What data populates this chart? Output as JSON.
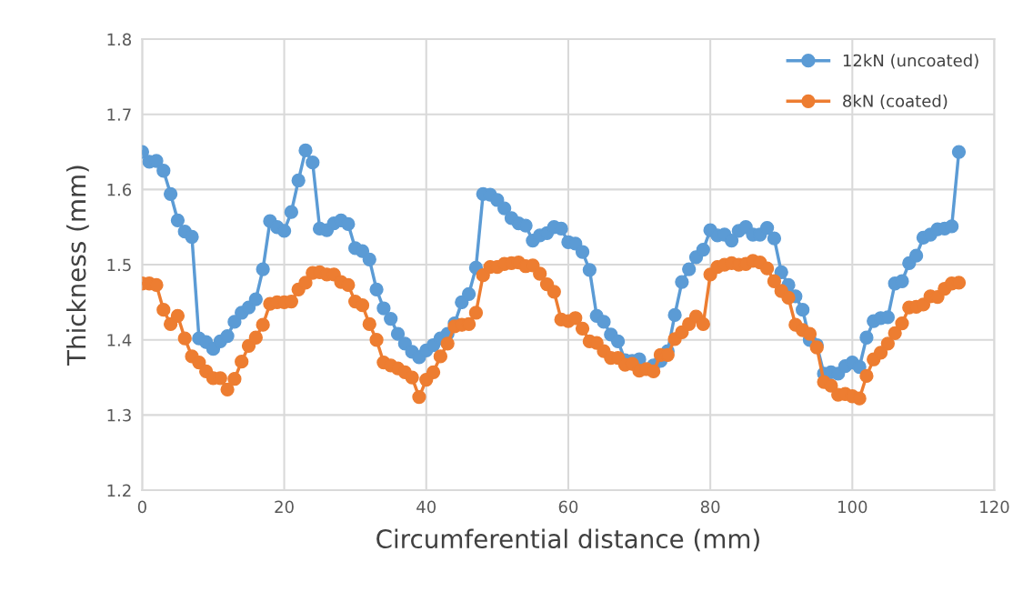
{
  "chart_data": {
    "type": "line",
    "xlabel": "Circumferential distance (mm)",
    "ylabel": "Thickness (mm)",
    "x": [
      0,
      1,
      2,
      3,
      4,
      5,
      6,
      7,
      8,
      9,
      10,
      11,
      12,
      13,
      14,
      15,
      16,
      17,
      18,
      19,
      20,
      21,
      22,
      23,
      24,
      25,
      26,
      27,
      28,
      29,
      30,
      31,
      32,
      33,
      34,
      35,
      36,
      37,
      38,
      39,
      40,
      41,
      42,
      43,
      44,
      45,
      46,
      47,
      48,
      49,
      50,
      51,
      52,
      53,
      54,
      55,
      56,
      57,
      58,
      59,
      60,
      61,
      62,
      63,
      64,
      65,
      66,
      67,
      68,
      69,
      70,
      71,
      72,
      73,
      74,
      75,
      76,
      77,
      78,
      79,
      80,
      81,
      82,
      83,
      84,
      85,
      86,
      87,
      88,
      89,
      90,
      91,
      92,
      93,
      94,
      95,
      96,
      97,
      98,
      99,
      100,
      101,
      102,
      103,
      104,
      105,
      106,
      107,
      108,
      109,
      110,
      111,
      112,
      113,
      114,
      115
    ],
    "series": [
      {
        "name": "12kN (uncoated)",
        "color": "#5b9bd5",
        "values": [
          1.65,
          1.637,
          1.638,
          1.625,
          1.594,
          1.559,
          1.544,
          1.537,
          1.402,
          1.397,
          1.388,
          1.398,
          1.405,
          1.424,
          1.436,
          1.443,
          1.454,
          1.494,
          1.558,
          1.55,
          1.545,
          1.57,
          1.612,
          1.652,
          1.636,
          1.548,
          1.546,
          1.555,
          1.559,
          1.554,
          1.522,
          1.518,
          1.507,
          1.467,
          1.442,
          1.428,
          1.408,
          1.395,
          1.384,
          1.377,
          1.386,
          1.393,
          1.402,
          1.408,
          1.422,
          1.45,
          1.461,
          1.496,
          1.594,
          1.593,
          1.586,
          1.575,
          1.562,
          1.555,
          1.552,
          1.532,
          1.539,
          1.542,
          1.55,
          1.548,
          1.53,
          1.528,
          1.517,
          1.493,
          1.432,
          1.424,
          1.407,
          1.398,
          1.373,
          1.372,
          1.374,
          null,
          1.366,
          1.372,
          1.385,
          1.433,
          1.477,
          1.494,
          1.51,
          1.52,
          1.546,
          1.539,
          1.54,
          1.532,
          1.545,
          1.55,
          1.54,
          1.54,
          1.549,
          1.535,
          1.49,
          1.473,
          1.458,
          1.44,
          1.4,
          1.393,
          1.355,
          1.357,
          1.355,
          1.365,
          1.37,
          1.364,
          1.403,
          1.425,
          1.429,
          1.43,
          1.475,
          1.478,
          1.502,
          1.512,
          1.536,
          1.54,
          1.547,
          1.548,
          1.551,
          1.65
        ]
      },
      {
        "name": "8kN (coated)",
        "color": "#ed7d31",
        "values": [
          1.475,
          1.475,
          1.473,
          1.44,
          1.421,
          1.432,
          1.402,
          1.378,
          1.37,
          1.358,
          1.349,
          1.349,
          1.334,
          1.348,
          1.371,
          1.392,
          1.403,
          1.42,
          1.448,
          1.45,
          1.45,
          1.451,
          1.467,
          1.476,
          1.489,
          1.49,
          1.487,
          1.487,
          1.477,
          1.473,
          1.451,
          1.446,
          1.421,
          1.4,
          1.37,
          1.366,
          1.362,
          1.357,
          1.35,
          1.324,
          1.347,
          1.357,
          1.378,
          1.395,
          1.418,
          1.42,
          1.421,
          1.436,
          1.486,
          1.497,
          1.497,
          1.501,
          1.502,
          1.503,
          1.498,
          1.499,
          1.488,
          1.474,
          1.464,
          1.427,
          1.425,
          1.429,
          1.415,
          1.398,
          1.396,
          1.385,
          1.376,
          1.376,
          1.367,
          1.368,
          1.359,
          1.361,
          1.358,
          1.38,
          1.38,
          1.401,
          1.41,
          1.421,
          1.431,
          1.421,
          1.487,
          1.497,
          1.5,
          1.502,
          1.5,
          1.501,
          1.505,
          1.503,
          1.495,
          1.478,
          1.465,
          1.456,
          1.42,
          1.413,
          1.408,
          1.39,
          1.344,
          1.339,
          1.327,
          1.328,
          1.325,
          1.322,
          1.352,
          1.374,
          1.383,
          1.395,
          1.409,
          1.422,
          1.443,
          1.444,
          1.447,
          1.458,
          1.457,
          1.468,
          1.475,
          1.476
        ]
      }
    ],
    "xlim": [
      0,
      120
    ],
    "xticks": [
      0,
      20,
      40,
      60,
      80,
      100,
      120
    ],
    "ylim": [
      1.2,
      1.8
    ],
    "yticks": [
      {
        "value": 1.2,
        "label": "1.2"
      },
      {
        "value": 1.3,
        "label": "1.3"
      },
      {
        "value": 1.4,
        "label": "1.4"
      },
      {
        "value": 1.5,
        "label": "1.5"
      },
      {
        "value": 1.6,
        "label": "1.6"
      },
      {
        "value": 1.7,
        "label": "1.7"
      },
      {
        "value": 1.8,
        "label": "1.8"
      }
    ],
    "grid": true,
    "legend": "top right",
    "marker": "circle",
    "line_style": "solid"
  }
}
